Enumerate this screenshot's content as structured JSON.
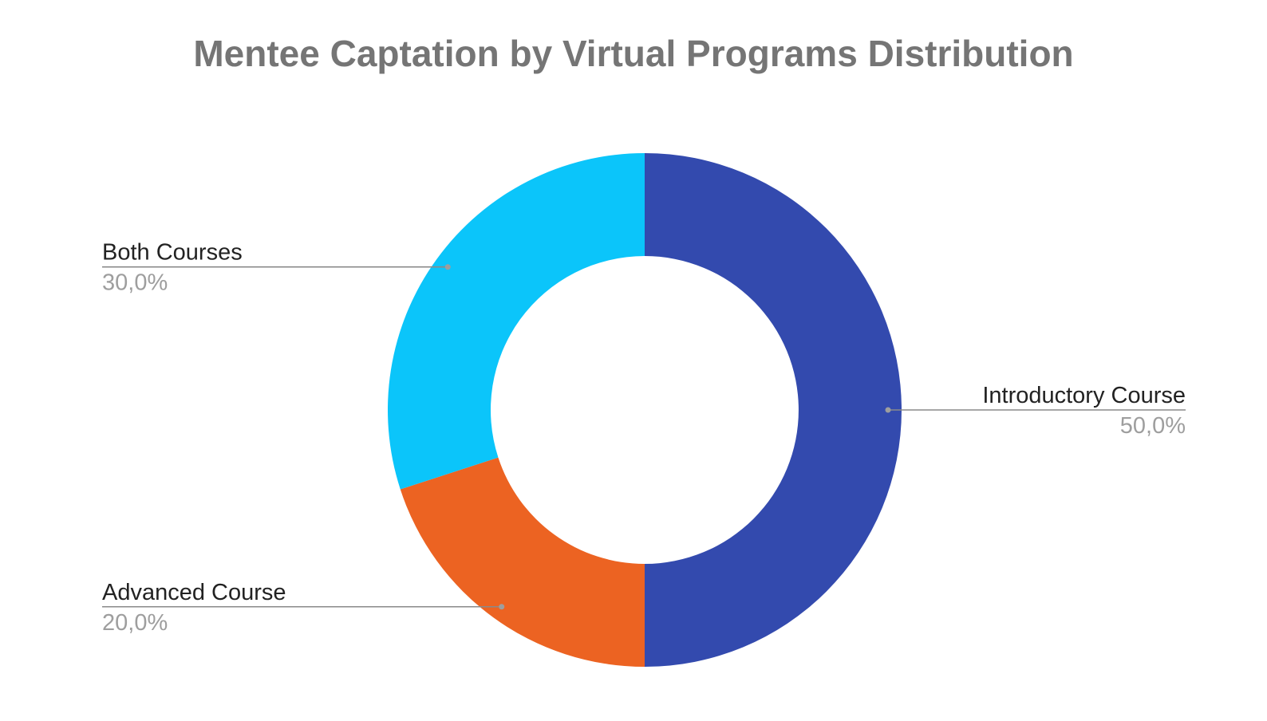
{
  "chart_data": {
    "type": "pie",
    "variant": "donut",
    "title": "Mentee Captation by Virtual Programs Distribution",
    "slices": [
      {
        "label": "Introductory Course",
        "value": 50.0,
        "display": "50,0%",
        "color": "#334aae"
      },
      {
        "label": "Advanced Course",
        "value": 20.0,
        "display": "20,0%",
        "color": "#ec6322"
      },
      {
        "label": "Both Courses",
        "value": 30.0,
        "display": "30,0%",
        "color": "#0bc5fa"
      }
    ],
    "start_angle_deg": 0,
    "direction": "clockwise",
    "legend": "none",
    "label_style": "outside-with-leader-lines"
  }
}
